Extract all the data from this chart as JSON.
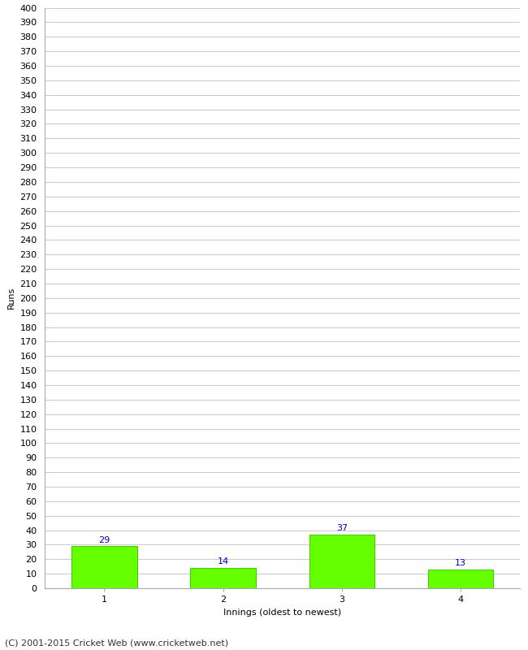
{
  "categories": [
    "1",
    "2",
    "3",
    "4"
  ],
  "values": [
    29,
    14,
    37,
    13
  ],
  "bar_color": "#66ff00",
  "bar_edge_color": "#44cc00",
  "label_color": "#0000cc",
  "xlabel": "Innings (oldest to newest)",
  "ylabel": "Runs",
  "ylim": [
    0,
    400
  ],
  "ytick_step": 10,
  "grid_color": "#cccccc",
  "background_color": "#ffffff",
  "footer": "(C) 2001-2015 Cricket Web (www.cricketweb.net)",
  "label_fontsize": 8,
  "axis_fontsize": 8,
  "footer_fontsize": 8,
  "bar_width": 0.55
}
